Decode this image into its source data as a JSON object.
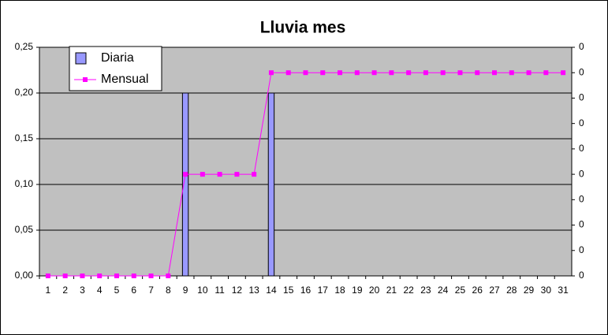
{
  "chart_data": {
    "type": "bar",
    "title": "Lluvia mes",
    "categories": [
      "1",
      "2",
      "3",
      "4",
      "5",
      "6",
      "7",
      "8",
      "9",
      "10",
      "11",
      "12",
      "13",
      "14",
      "15",
      "16",
      "17",
      "18",
      "19",
      "20",
      "21",
      "22",
      "23",
      "24",
      "25",
      "26",
      "27",
      "28",
      "29",
      "30",
      "31"
    ],
    "series": [
      {
        "name": "Diaria",
        "color": "#9999ff",
        "values": [
          0,
          0,
          0,
          0,
          0,
          0,
          0,
          0,
          0.2,
          0,
          0,
          0,
          0,
          0.2,
          0,
          0,
          0,
          0,
          0,
          0,
          0,
          0,
          0,
          0,
          0,
          0,
          0,
          0,
          0,
          0,
          0
        ]
      },
      {
        "name": "Mensual",
        "color": "#ff00ff",
        "type": "line",
        "axis": "y2",
        "values": [
          0,
          0,
          0,
          0,
          0,
          0,
          0,
          0,
          0.2,
          0.2,
          0.2,
          0.2,
          0.2,
          0.4,
          0.4,
          0.4,
          0.4,
          0.4,
          0.4,
          0.4,
          0.4,
          0.4,
          0.4,
          0.4,
          0.4,
          0.4,
          0.4,
          0.4,
          0.4,
          0.4,
          0.4
        ]
      }
    ],
    "ylim": [
      0,
      0.25
    ],
    "yticks": [
      {
        "value": 0,
        "label": "0,00"
      },
      {
        "value": 0.05,
        "label": "0,05"
      },
      {
        "value": 0.1,
        "label": "0,10"
      },
      {
        "value": 0.15,
        "label": "0,15"
      },
      {
        "value": 0.2,
        "label": "0,20"
      },
      {
        "value": 0.25,
        "label": "0,25"
      }
    ],
    "y2lim": [
      0,
      0.45
    ],
    "y2ticks": [
      {
        "value": 0,
        "label": "0"
      },
      {
        "value": 0.05,
        "label": "0"
      },
      {
        "value": 0.1,
        "label": "0"
      },
      {
        "value": 0.15,
        "label": "0"
      },
      {
        "value": 0.2,
        "label": "0"
      },
      {
        "value": 0.25,
        "label": "0"
      },
      {
        "value": 0.3,
        "label": "0"
      },
      {
        "value": 0.35,
        "label": "0"
      },
      {
        "value": 0.4,
        "label": "0"
      },
      {
        "value": 0.45,
        "label": "0"
      }
    ],
    "grid": true,
    "legend": "top-left"
  }
}
